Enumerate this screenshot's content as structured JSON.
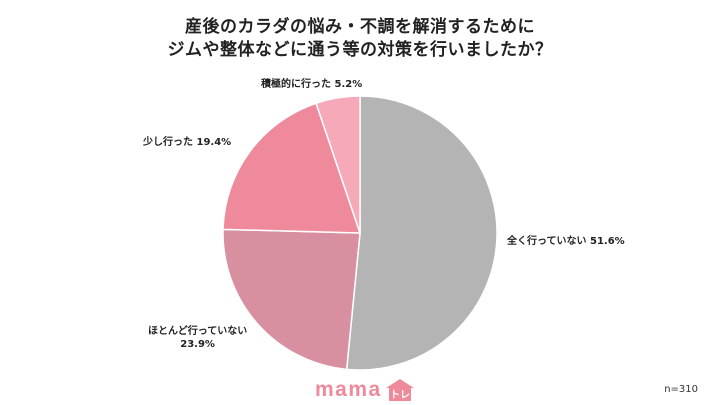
{
  "chart_data": {
    "type": "pie",
    "title_lines": [
      "産後のカラダの悩み・不調を解消するために",
      "ジムや整体などに通う等の対策を行いましたか？"
    ],
    "slices": [
      {
        "label": "全く行っていない",
        "value": 51.6,
        "value_text": "51.6%",
        "color": "#b4b4b4"
      },
      {
        "label": "ほとんど行っていない",
        "value": 23.9,
        "value_text": "23.9%",
        "color": "#d88fa0"
      },
      {
        "label": "少し行った",
        "value": 19.4,
        "value_text": "19.4%",
        "color": "#ee8a9c"
      },
      {
        "label": "積極的に行った",
        "value": 5.2,
        "value_text": "5.2%",
        "color": "#f6a9b8"
      }
    ],
    "sample_size": "n=310"
  },
  "logo": {
    "text": "mama",
    "badge_text": "トレ",
    "color": "#ee8a9b"
  }
}
